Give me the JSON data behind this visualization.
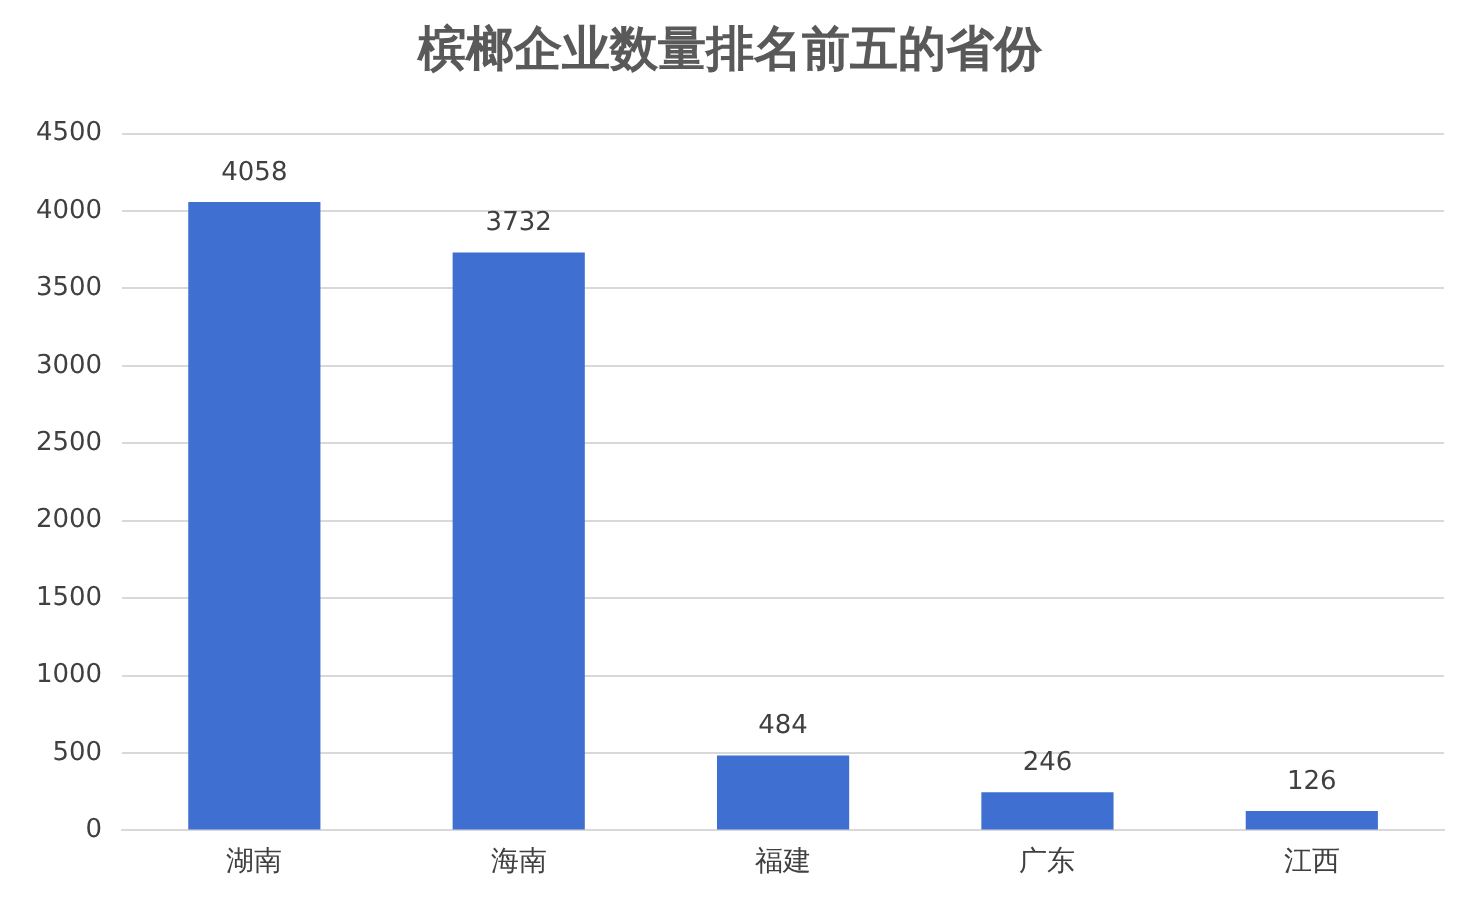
{
  "chart_data": {
    "type": "bar",
    "title": "槟榔企业数量排名前五的省份",
    "categories": [
      "湖南",
      "海南",
      "福建",
      "广东",
      "江西"
    ],
    "values": [
      4058,
      3732,
      484,
      246,
      126
    ],
    "color": "#3f6fd0",
    "ylim": [
      0,
      4500
    ],
    "yticks": [
      0,
      500,
      1000,
      1500,
      2000,
      2500,
      3000,
      3500,
      4000,
      4500
    ],
    "grid": "y",
    "data_labels": true,
    "legend": false
  }
}
